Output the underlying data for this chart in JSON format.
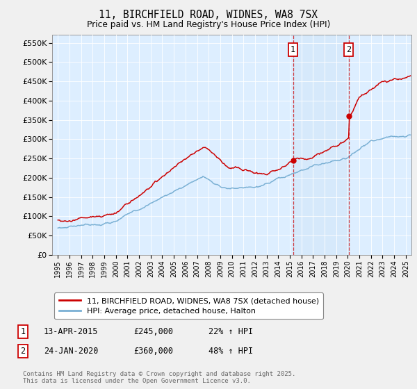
{
  "title": "11, BIRCHFIELD ROAD, WIDNES, WA8 7SX",
  "subtitle": "Price paid vs. HM Land Registry's House Price Index (HPI)",
  "yticks": [
    0,
    50000,
    100000,
    150000,
    200000,
    250000,
    300000,
    350000,
    400000,
    450000,
    500000,
    550000
  ],
  "ytick_labels": [
    "£0",
    "£50K",
    "£100K",
    "£150K",
    "£200K",
    "£250K",
    "£300K",
    "£350K",
    "£400K",
    "£450K",
    "£500K",
    "£550K"
  ],
  "ylim": [
    0,
    570000
  ],
  "red_color": "#cc0000",
  "blue_color": "#7ab0d4",
  "bg_color": "#ddeeff",
  "fig_bg": "#f0f0f0",
  "marker1_x": 2015.27,
  "marker2_x": 2020.07,
  "marker1_val_red": 245000,
  "marker2_val_red": 360000,
  "legend_red": "11, BIRCHFIELD ROAD, WIDNES, WA8 7SX (detached house)",
  "legend_blue": "HPI: Average price, detached house, Halton",
  "table_rows": [
    {
      "num": "1",
      "date": "13-APR-2015",
      "price": "£245,000",
      "hpi": "22% ↑ HPI"
    },
    {
      "num": "2",
      "date": "24-JAN-2020",
      "price": "£360,000",
      "hpi": "48% ↑ HPI"
    }
  ],
  "footer": "Contains HM Land Registry data © Crown copyright and database right 2025.\nThis data is licensed under the Open Government Licence v3.0.",
  "xmin": 1994.5,
  "xmax": 2025.5
}
